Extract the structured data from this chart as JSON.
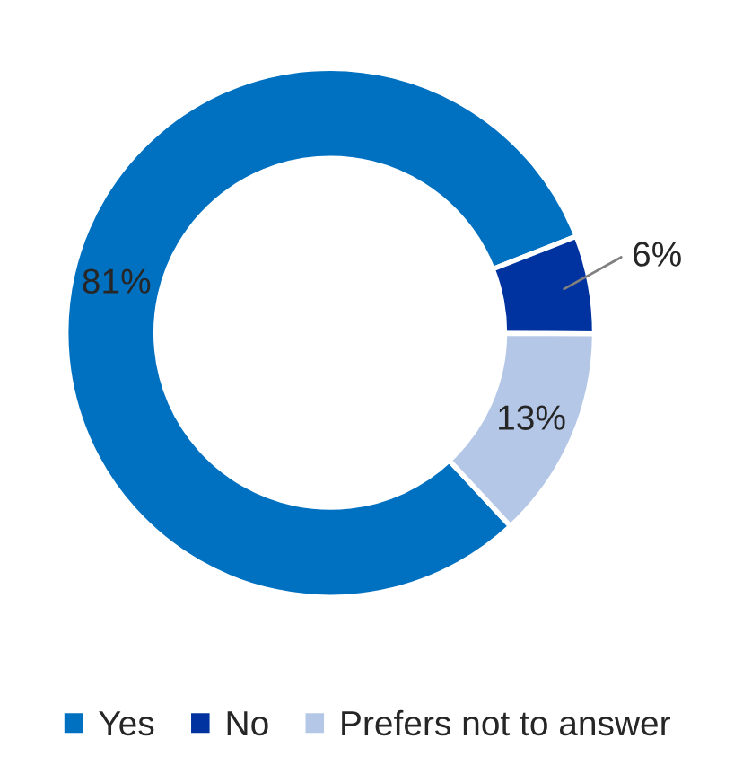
{
  "chart_data": {
    "type": "donut",
    "categories": [
      "Yes",
      "No",
      "Prefers not to answer"
    ],
    "values": [
      81,
      6,
      13
    ],
    "colors": [
      "#0070c0",
      "#0033a0",
      "#b4c7e7"
    ],
    "value_labels": [
      "81%",
      "6%",
      "13%"
    ],
    "legend": "bottom"
  }
}
